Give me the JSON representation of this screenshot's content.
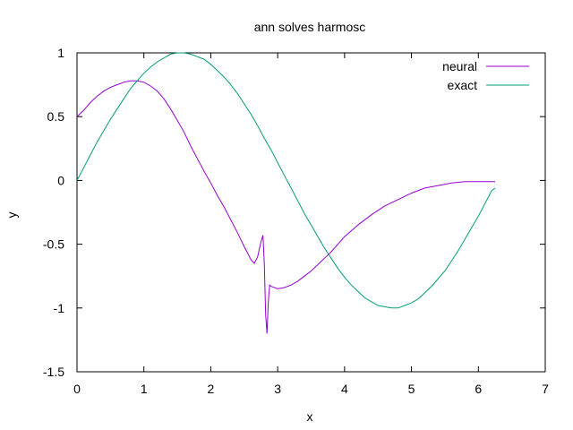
{
  "chart_data": {
    "type": "line",
    "title": "ann solves harmosc",
    "xlabel": "x",
    "ylabel": "y",
    "xlim": [
      0,
      7
    ],
    "ylim": [
      -1.5,
      1
    ],
    "xticks": [
      0,
      1,
      2,
      3,
      4,
      5,
      6,
      7
    ],
    "yticks": [
      -1.5,
      -1,
      -0.5,
      0,
      0.5,
      1
    ],
    "xtick_labels": [
      "0",
      "1",
      "2",
      "3",
      "4",
      "5",
      "6",
      "7"
    ],
    "ytick_labels": [
      "-1.5",
      "-1",
      "-0.5",
      "0",
      "0.5",
      "1"
    ],
    "grid": false,
    "legend": "top-right",
    "series": [
      {
        "name": "neural",
        "color": "#9400d3",
        "x": [
          0,
          0.1,
          0.2,
          0.3,
          0.4,
          0.5,
          0.6,
          0.7,
          0.8,
          0.9,
          1.0,
          1.1,
          1.2,
          1.3,
          1.4,
          1.5,
          1.6,
          1.7,
          1.8,
          1.9,
          2.0,
          2.1,
          2.2,
          2.3,
          2.4,
          2.5,
          2.6,
          2.65,
          2.7,
          2.75,
          2.78,
          2.8,
          2.82,
          2.84,
          2.86,
          2.88,
          2.9,
          3.0,
          3.1,
          3.2,
          3.3,
          3.4,
          3.5,
          3.6,
          3.7,
          3.8,
          3.9,
          4.0,
          4.2,
          4.4,
          4.6,
          4.8,
          5.0,
          5.2,
          5.4,
          5.6,
          5.8,
          6.0,
          6.2,
          6.25
        ],
        "y": [
          0.5,
          0.55,
          0.61,
          0.66,
          0.7,
          0.73,
          0.75,
          0.77,
          0.78,
          0.78,
          0.77,
          0.74,
          0.7,
          0.64,
          0.56,
          0.47,
          0.38,
          0.27,
          0.17,
          0.07,
          -0.02,
          -0.12,
          -0.21,
          -0.31,
          -0.41,
          -0.52,
          -0.62,
          -0.65,
          -0.6,
          -0.48,
          -0.43,
          -0.65,
          -1.05,
          -1.2,
          -0.95,
          -0.82,
          -0.83,
          -0.85,
          -0.84,
          -0.82,
          -0.79,
          -0.75,
          -0.71,
          -0.66,
          -0.61,
          -0.56,
          -0.5,
          -0.44,
          -0.35,
          -0.27,
          -0.2,
          -0.15,
          -0.1,
          -0.06,
          -0.04,
          -0.02,
          -0.01,
          -0.01,
          -0.01,
          -0.01
        ]
      },
      {
        "name": "exact",
        "color": "#009e73",
        "x": [
          0,
          0.1,
          0.2,
          0.3,
          0.4,
          0.5,
          0.6,
          0.7,
          0.8,
          0.9,
          1.0,
          1.1,
          1.2,
          1.3,
          1.4,
          1.5,
          1.6,
          1.7,
          1.8,
          1.9,
          2.0,
          2.1,
          2.2,
          2.3,
          2.4,
          2.5,
          2.6,
          2.7,
          2.8,
          2.9,
          3.0,
          3.1,
          3.2,
          3.3,
          3.4,
          3.5,
          3.6,
          3.7,
          3.8,
          3.9,
          4.0,
          4.1,
          4.2,
          4.3,
          4.4,
          4.5,
          4.6,
          4.7,
          4.8,
          4.9,
          5.0,
          5.1,
          5.2,
          5.3,
          5.4,
          5.5,
          5.6,
          5.7,
          5.8,
          5.9,
          6.0,
          6.1,
          6.2,
          6.25
        ],
        "y": [
          0.0,
          0.1,
          0.2,
          0.3,
          0.39,
          0.48,
          0.56,
          0.64,
          0.72,
          0.78,
          0.84,
          0.89,
          0.93,
          0.96,
          0.99,
          1.0,
          1.0,
          0.99,
          0.97,
          0.95,
          0.91,
          0.86,
          0.81,
          0.75,
          0.68,
          0.6,
          0.52,
          0.43,
          0.33,
          0.24,
          0.14,
          0.04,
          -0.06,
          -0.16,
          -0.26,
          -0.35,
          -0.44,
          -0.53,
          -0.61,
          -0.69,
          -0.76,
          -0.82,
          -0.87,
          -0.92,
          -0.95,
          -0.98,
          -0.99,
          -1.0,
          -1.0,
          -0.98,
          -0.96,
          -0.93,
          -0.88,
          -0.83,
          -0.77,
          -0.71,
          -0.63,
          -0.55,
          -0.46,
          -0.37,
          -0.28,
          -0.18,
          -0.08,
          -0.06
        ]
      }
    ]
  }
}
